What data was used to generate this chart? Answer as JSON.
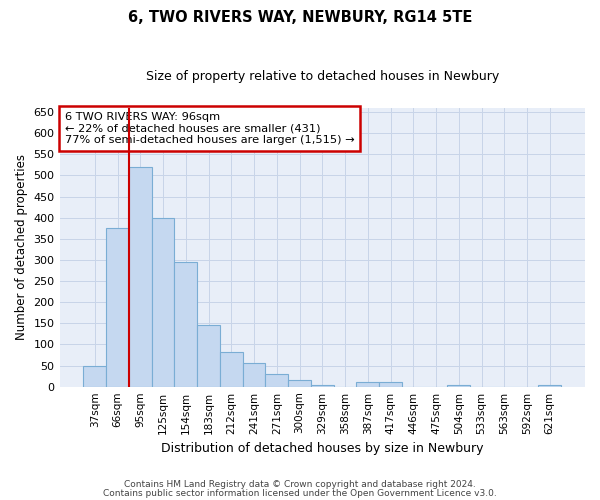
{
  "title": "6, TWO RIVERS WAY, NEWBURY, RG14 5TE",
  "subtitle": "Size of property relative to detached houses in Newbury",
  "xlabel": "Distribution of detached houses by size in Newbury",
  "ylabel": "Number of detached properties",
  "categories": [
    "37sqm",
    "66sqm",
    "95sqm",
    "125sqm",
    "154sqm",
    "183sqm",
    "212sqm",
    "241sqm",
    "271sqm",
    "300sqm",
    "329sqm",
    "358sqm",
    "387sqm",
    "417sqm",
    "446sqm",
    "475sqm",
    "504sqm",
    "533sqm",
    "563sqm",
    "592sqm",
    "621sqm"
  ],
  "values": [
    50,
    375,
    520,
    400,
    295,
    145,
    82,
    55,
    30,
    15,
    5,
    0,
    10,
    10,
    0,
    0,
    5,
    0,
    0,
    0,
    5
  ],
  "bar_color": "#c5d8f0",
  "bar_edge_color": "#7aadd4",
  "highlight_line_index": 2,
  "annotation_text": "6 TWO RIVERS WAY: 96sqm\n← 22% of detached houses are smaller (431)\n77% of semi-detached houses are larger (1,515) →",
  "annotation_box_color": "#ffffff",
  "annotation_edge_color": "#cc0000",
  "footnote_line1": "Contains HM Land Registry data © Crown copyright and database right 2024.",
  "footnote_line2": "Contains public sector information licensed under the Open Government Licence v3.0.",
  "grid_color": "#c8d4e8",
  "background_color": "#e8eef8",
  "ylim": [
    0,
    660
  ],
  "yticks": [
    0,
    50,
    100,
    150,
    200,
    250,
    300,
    350,
    400,
    450,
    500,
    550,
    600,
    650
  ]
}
